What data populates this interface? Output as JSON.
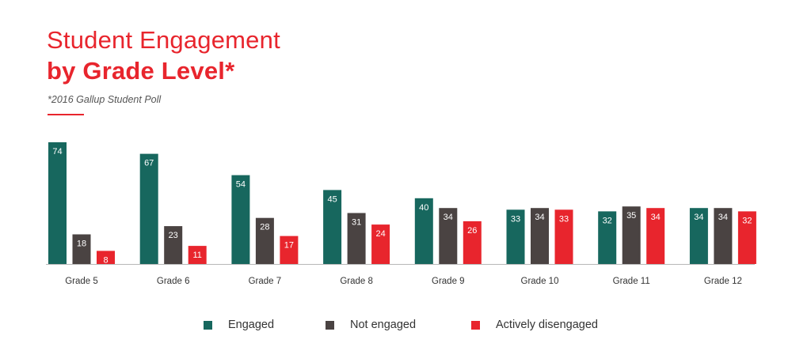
{
  "title_line1": "Student Engagement",
  "title_line2": "by Grade Level*",
  "subtitle": "*2016 Gallup Student Poll",
  "colors": {
    "engaged": "#17675e",
    "not_engaged": "#4a4342",
    "actively_disengaged": "#e8252d",
    "title": "#e8252d"
  },
  "legend": [
    {
      "label": "Engaged",
      "color": "#17675e"
    },
    {
      "label": "Not engaged",
      "color": "#4a4342"
    },
    {
      "label": "Actively disengaged",
      "color": "#e8252d"
    }
  ],
  "chart_data": {
    "type": "bar",
    "title": "Student Engagement by Grade Level*",
    "subtitle": "*2016 Gallup Student Poll",
    "xlabel": "",
    "ylabel": "",
    "ylim": [
      0,
      74
    ],
    "grid": false,
    "legend_position": "bottom",
    "categories": [
      "Grade 5",
      "Grade 6",
      "Grade 7",
      "Grade 8",
      "Grade 9",
      "Grade 10",
      "Grade 11",
      "Grade 12"
    ],
    "series": [
      {
        "name": "Engaged",
        "color": "#17675e",
        "values": [
          74,
          67,
          54,
          45,
          40,
          33,
          32,
          34
        ]
      },
      {
        "name": "Not engaged",
        "color": "#4a4342",
        "values": [
          18,
          23,
          28,
          31,
          34,
          34,
          35,
          34
        ]
      },
      {
        "name": "Actively disengaged",
        "color": "#e8252d",
        "values": [
          8,
          11,
          17,
          24,
          26,
          33,
          34,
          32
        ]
      }
    ]
  }
}
